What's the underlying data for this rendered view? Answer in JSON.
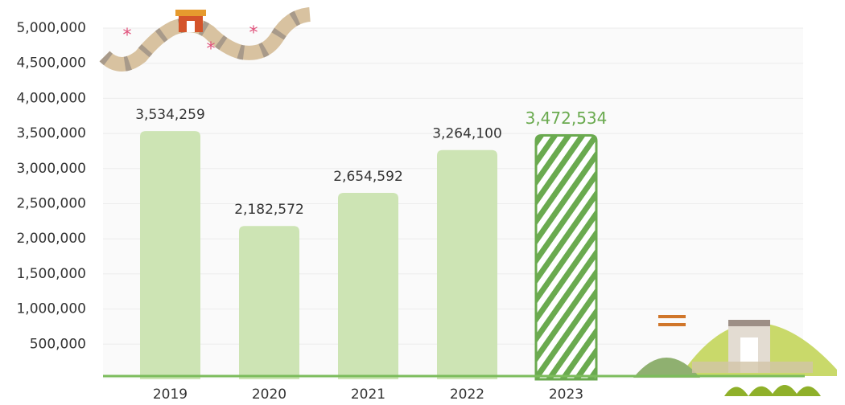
{
  "chart_data": {
    "type": "bar",
    "categories": [
      "2019",
      "2020",
      "2021",
      "2022",
      "2023"
    ],
    "values": [
      3534259,
      2182572,
      2654592,
      3264100,
      3472534
    ],
    "value_labels": [
      "3,534,259",
      "2,182,572",
      "2,654,592",
      "3,264,100",
      "3,472,534"
    ],
    "colors": [
      "#cde4b4",
      "#cde4b4",
      "#cde4b4",
      "#cde4b4",
      "#6aaa4f"
    ],
    "patterns": [
      "solid",
      "solid",
      "solid",
      "solid",
      "hatched"
    ],
    "ylim": [
      0,
      5000000
    ],
    "yticks": [
      {
        "value": 500000,
        "label": "500,000"
      },
      {
        "value": 1000000,
        "label": "1,000,000"
      },
      {
        "value": 1500000,
        "label": "1,500,000"
      },
      {
        "value": 2000000,
        "label": "2,000,000"
      },
      {
        "value": 2500000,
        "label": "2,500,000"
      },
      {
        "value": 3000000,
        "label": "3,000,000"
      },
      {
        "value": 3500000,
        "label": "3,500,000"
      },
      {
        "value": 4000000,
        "label": "4,000,000"
      },
      {
        "value": 4500000,
        "label": "4,500,000"
      },
      {
        "value": 5000000,
        "label": "5,000,000"
      }
    ],
    "grid": true
  }
}
